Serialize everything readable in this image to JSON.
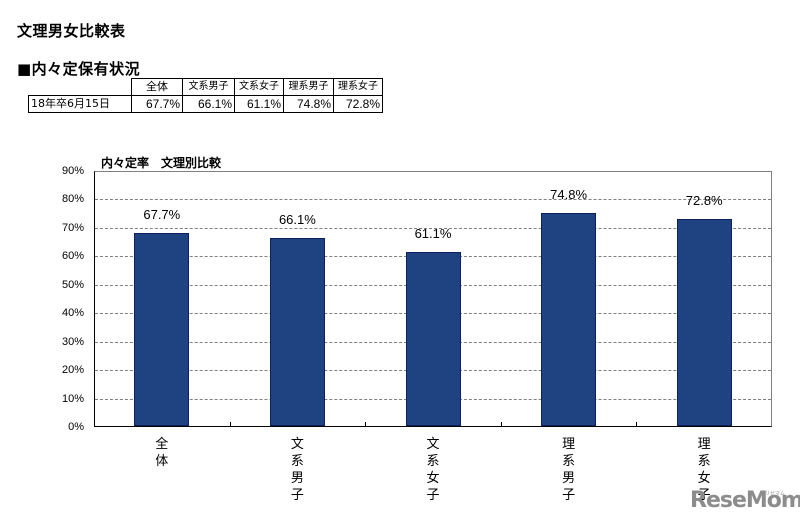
{
  "header": {
    "title": "文理男女比較表",
    "section_heading": "■内々定保有状況"
  },
  "table": {
    "columns": [
      "全体",
      "文系男子",
      "文系女子",
      "理系男子",
      "理系女子"
    ],
    "rows": [
      {
        "label": "18年卒6月15日",
        "values": [
          "67.7%",
          "66.1%",
          "61.1%",
          "74.8%",
          "72.8%"
        ]
      }
    ]
  },
  "chart_data": {
    "type": "bar",
    "title": "内々定率　文理別比較",
    "categories": [
      "全体",
      "文系男子",
      "文系女子",
      "理系男子",
      "理系女子"
    ],
    "values": [
      67.7,
      66.1,
      61.1,
      74.8,
      72.8
    ],
    "value_labels": [
      "67.7%",
      "66.1%",
      "61.1%",
      "74.8%",
      "72.8%"
    ],
    "xlabel": "",
    "ylabel": "",
    "ylim": [
      0,
      90
    ],
    "yticks": [
      "0%",
      "10%",
      "20%",
      "30%",
      "40%",
      "50%",
      "60%",
      "70%",
      "80%",
      "90%"
    ],
    "grid": true,
    "legend": "none",
    "bar_color": "#1f4280",
    "category_label_orientation": "vertical-stacked"
  },
  "watermark": {
    "text": "ReseMom",
    "kana": "リセマム"
  }
}
